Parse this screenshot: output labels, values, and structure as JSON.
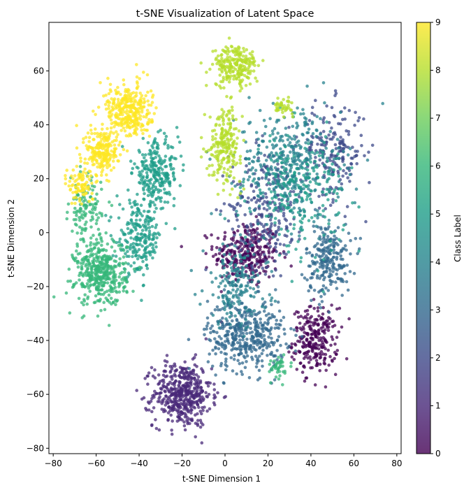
{
  "chart_data": {
    "type": "scatter",
    "title": "t-SNE Visualization of Latent Space",
    "xlabel": "t-SNE Dimension 1",
    "ylabel": "t-SNE Dimension 2",
    "xlim": [
      -82,
      82
    ],
    "ylim": [
      -82,
      78
    ],
    "xticks": [
      -80,
      -60,
      -40,
      -20,
      0,
      20,
      40,
      60,
      80
    ],
    "yticks": [
      -80,
      -60,
      -40,
      -20,
      0,
      20,
      40,
      60
    ],
    "grid": false,
    "colormap": "viridis",
    "point_alpha": 0.75,
    "colorbar": {
      "label": "Class Label",
      "range": [
        0,
        9
      ],
      "ticks": [
        0,
        1,
        2,
        3,
        4,
        5,
        6,
        7,
        8,
        9
      ]
    },
    "clusters": [
      {
        "class": 0,
        "center": [
          10,
          -8
        ],
        "spread": [
          10,
          8
        ],
        "approx_points": 300
      },
      {
        "class": 0,
        "center": [
          42,
          -40
        ],
        "spread": [
          7,
          8
        ],
        "approx_points": 260
      },
      {
        "class": 1,
        "center": [
          -20,
          -60
        ],
        "spread": [
          9,
          8
        ],
        "approx_points": 480
      },
      {
        "class": 2,
        "center": [
          20,
          10
        ],
        "spread": [
          12,
          15
        ],
        "approx_points": 250
      },
      {
        "class": 2,
        "center": [
          50,
          30
        ],
        "spread": [
          10,
          12
        ],
        "approx_points": 200
      },
      {
        "class": 3,
        "center": [
          10,
          -38
        ],
        "spread": [
          12,
          9
        ],
        "approx_points": 420
      },
      {
        "class": 3,
        "center": [
          48,
          -10
        ],
        "spread": [
          7,
          9
        ],
        "approx_points": 230
      },
      {
        "class": 4,
        "center": [
          30,
          25
        ],
        "spread": [
          16,
          14
        ],
        "approx_points": 380
      },
      {
        "class": 4,
        "center": [
          5,
          -20
        ],
        "spread": [
          10,
          10
        ],
        "approx_points": 180
      },
      {
        "class": 5,
        "center": [
          -32,
          22
        ],
        "spread": [
          7,
          8
        ],
        "approx_points": 260
      },
      {
        "class": 5,
        "center": [
          -40,
          -2
        ],
        "spread": [
          7,
          9
        ],
        "approx_points": 230
      },
      {
        "class": 5,
        "center": [
          35,
          15
        ],
        "spread": [
          14,
          14
        ],
        "approx_points": 220
      },
      {
        "class": 6,
        "center": [
          -58,
          -15
        ],
        "spread": [
          8,
          8
        ],
        "approx_points": 420
      },
      {
        "class": 6,
        "center": [
          -65,
          8
        ],
        "spread": [
          5,
          8
        ],
        "approx_points": 120
      },
      {
        "class": 6,
        "center": [
          25,
          -50
        ],
        "spread": [
          4,
          3
        ],
        "approx_points": 40
      },
      {
        "class": 8,
        "center": [
          5,
          62
        ],
        "spread": [
          7,
          5
        ],
        "approx_points": 230
      },
      {
        "class": 8,
        "center": [
          0,
          33
        ],
        "spread": [
          5,
          9
        ],
        "approx_points": 220
      },
      {
        "class": 8,
        "center": [
          27,
          47
        ],
        "spread": [
          3,
          2
        ],
        "approx_points": 40
      },
      {
        "class": 9,
        "center": [
          -45,
          45
        ],
        "spread": [
          7,
          7
        ],
        "approx_points": 340
      },
      {
        "class": 9,
        "center": [
          -57,
          30
        ],
        "spread": [
          5,
          6
        ],
        "approx_points": 220
      },
      {
        "class": 9,
        "center": [
          -67,
          18
        ],
        "spread": [
          4,
          5
        ],
        "approx_points": 90
      }
    ]
  }
}
